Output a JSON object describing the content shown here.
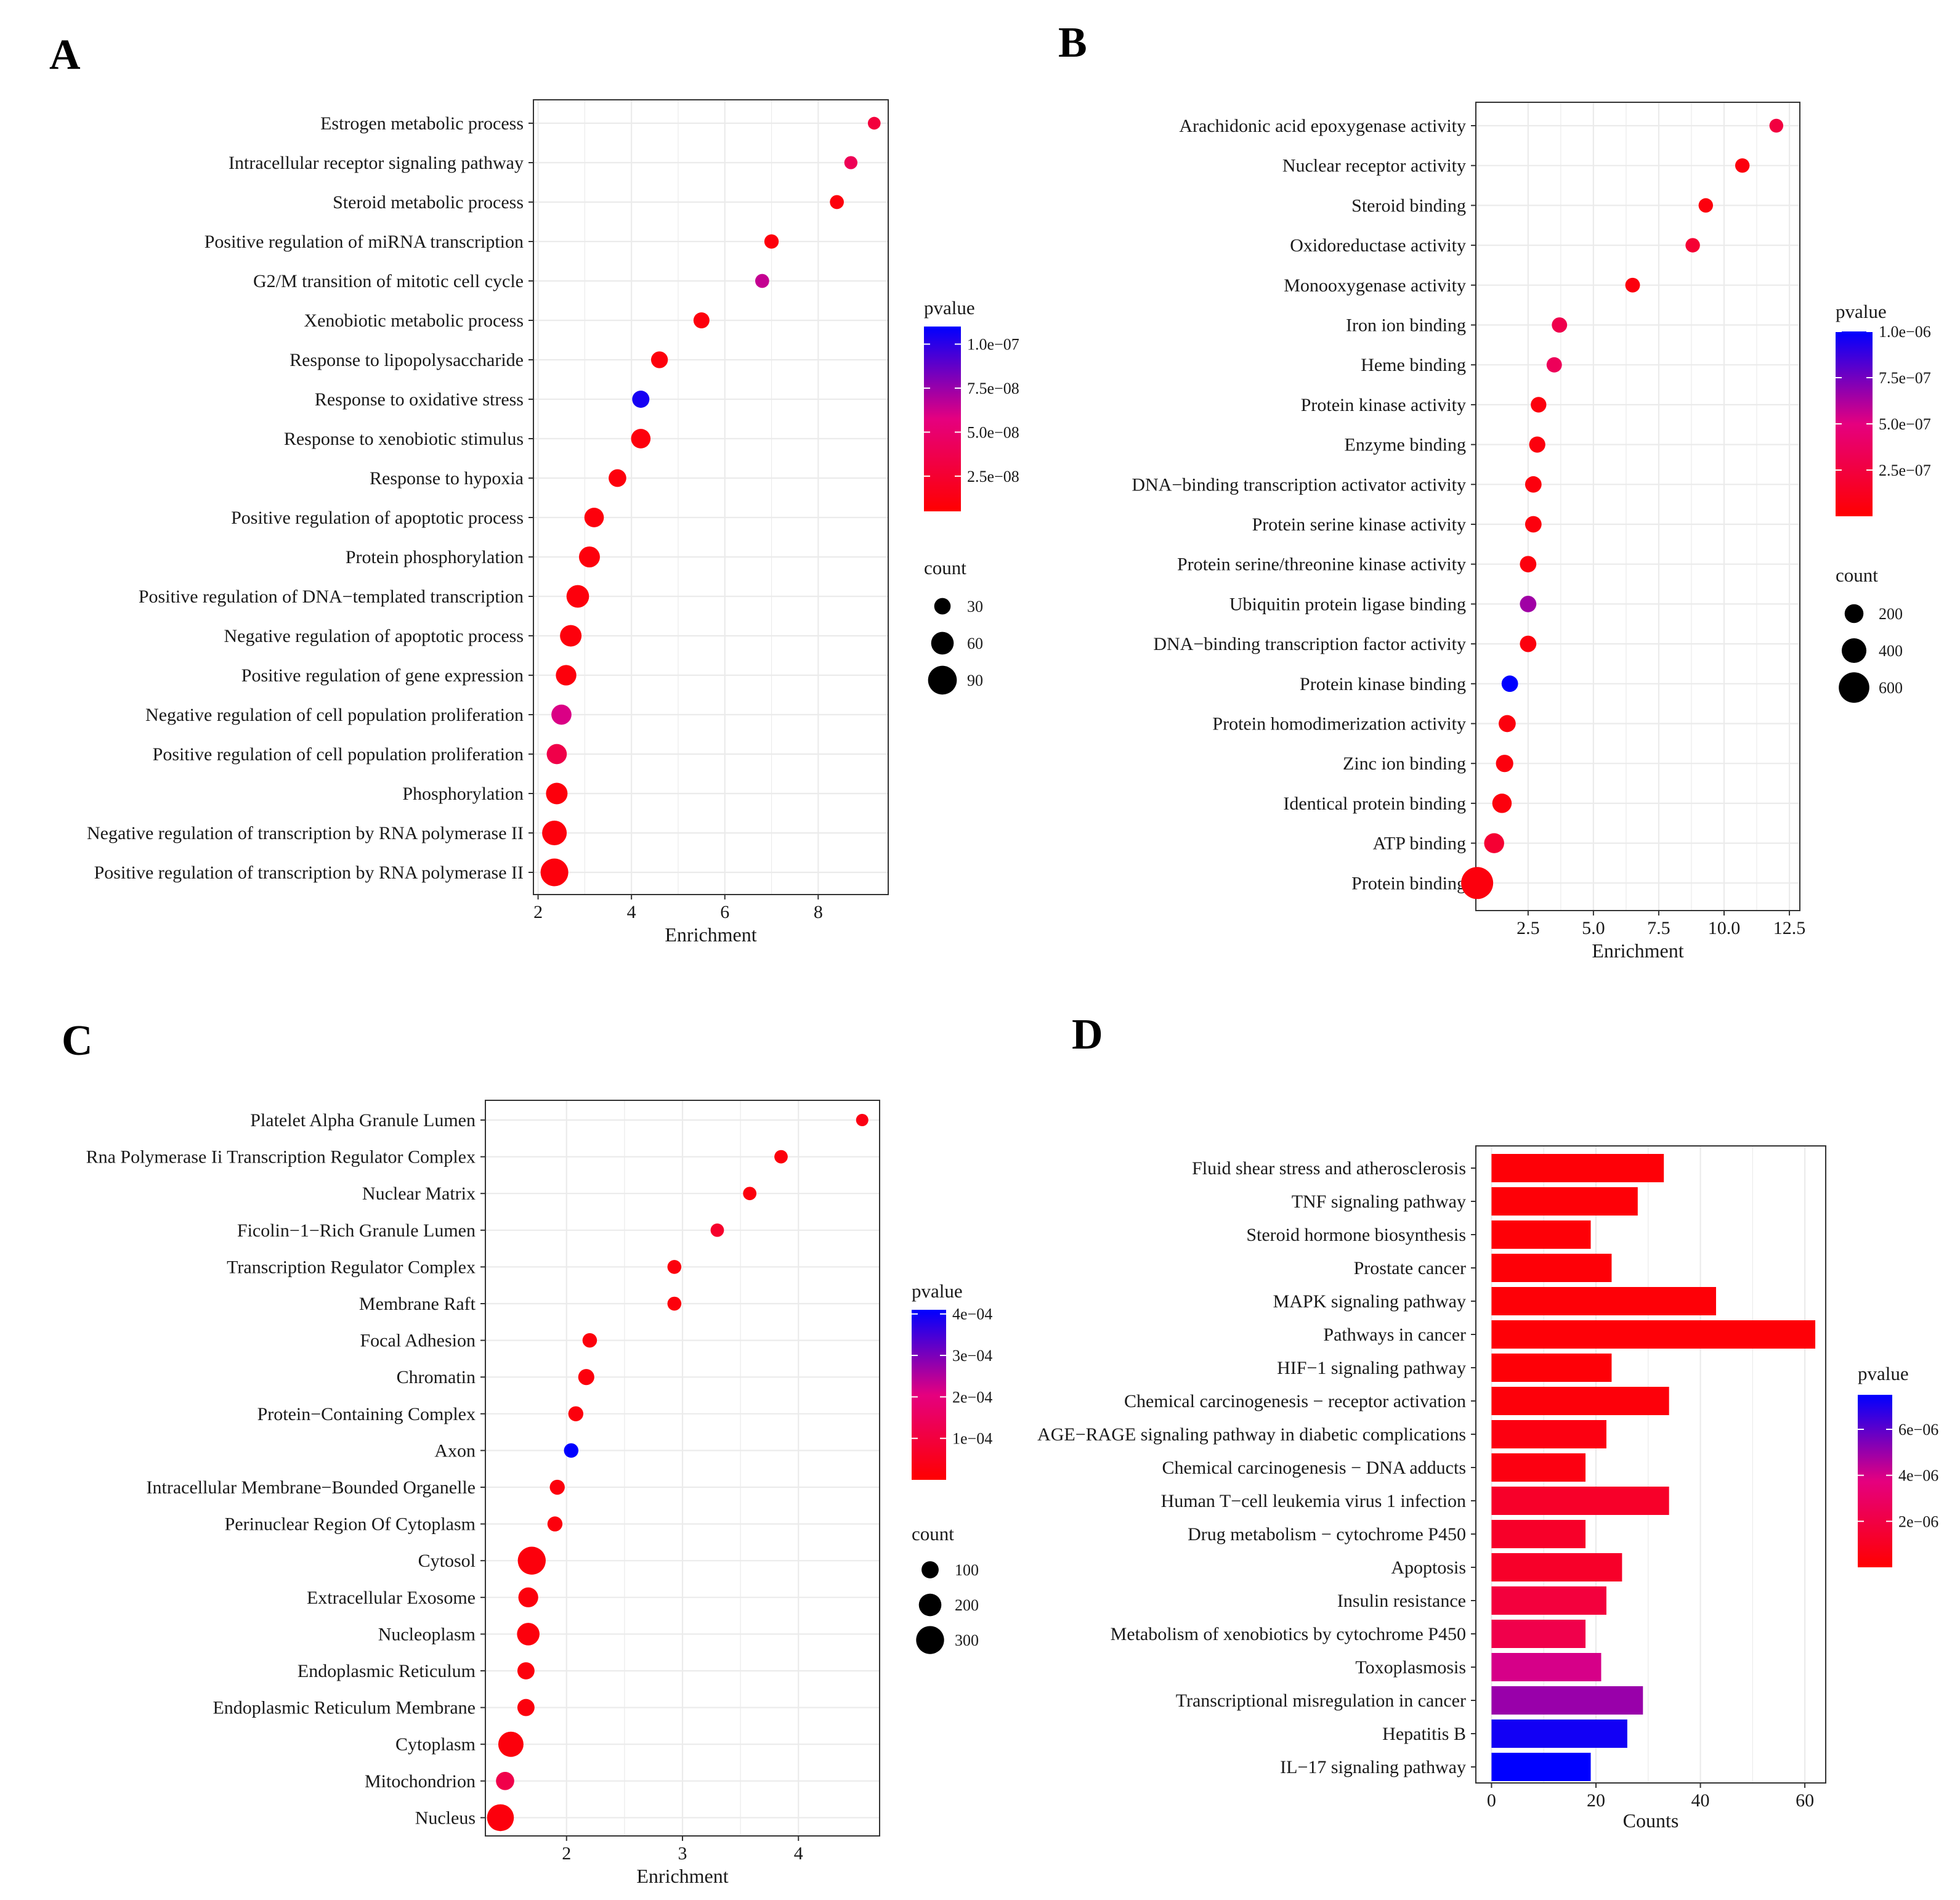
{
  "colors": {
    "low_p": "#ff0000",
    "mid_p": "#e5007f",
    "high_p": "#0000ff",
    "grid": "#ebebeb",
    "axis": "#333333"
  },
  "chart_data": [
    {
      "panel": "A",
      "type": "scatter",
      "xlabel": "Enrichment",
      "xlim": [
        1.9,
        9.5
      ],
      "xticks": [
        2,
        4,
        6,
        8
      ],
      "color_legend": {
        "title": "pvalue",
        "ticks": [
          "1.0e−07",
          "7.5e−08",
          "5.0e−08",
          "2.5e−08"
        ],
        "values": [
          1e-07,
          7.5e-08,
          5e-08,
          2.5e-08
        ],
        "range": [
          5e-09,
          1.1e-07
        ]
      },
      "size_legend": {
        "title": "count",
        "ticks": [
          "30",
          "60",
          "90"
        ],
        "values": [
          30,
          60,
          90
        ]
      },
      "count_range": [
        10,
        100
      ],
      "categories": [
        "Estrogen metabolic process",
        "Intracellular receptor signaling pathway",
        "Steroid metabolic process",
        "Positive regulation of miRNA transcription",
        "G2/M transition of mitotic cell cycle",
        "Xenobiotic metabolic process",
        "Response to lipopolysaccharide",
        "Response to oxidative stress",
        "Response to xenobiotic stimulus",
        "Response to hypoxia",
        "Positive regulation of apoptotic process",
        "Protein phosphorylation",
        "Positive regulation of DNA−templated transcription",
        "Negative regulation of apoptotic process",
        "Positive regulation of gene expression",
        "Negative regulation of cell population proliferation",
        "Positive regulation of cell population proliferation",
        "Phosphorylation",
        "Negative regulation of transcription by RNA polymerase II",
        "Positive regulation of transcription by RNA polymerase II"
      ],
      "x": [
        9.2,
        8.7,
        8.4,
        7.0,
        6.8,
        5.5,
        4.6,
        4.2,
        4.2,
        3.7,
        3.2,
        3.1,
        2.85,
        2.7,
        2.6,
        2.5,
        2.4,
        2.4,
        2.35,
        2.35
      ],
      "pvalue": [
        3e-08,
        4e-08,
        1e-08,
        1e-08,
        6.5e-08,
        1e-08,
        1e-08,
        1.05e-07,
        1e-08,
        1e-08,
        1e-08,
        1e-08,
        1e-08,
        1e-08,
        1e-08,
        6e-08,
        3.5e-08,
        1e-08,
        1e-08,
        1e-08
      ],
      "count": [
        12,
        14,
        18,
        20,
        18,
        28,
        32,
        34,
        45,
        36,
        45,
        52,
        60,
        55,
        50,
        48,
        48,
        55,
        70,
        85
      ]
    },
    {
      "panel": "B",
      "type": "scatter",
      "xlabel": "Enrichment",
      "xlim": [
        0.5,
        12.9
      ],
      "xticks": [
        2.5,
        5.0,
        7.5,
        10.0,
        12.5
      ],
      "xtick_labels": [
        "2.5",
        "5.0",
        "7.5",
        "10.0",
        "12.5"
      ],
      "color_legend": {
        "title": "pvalue",
        "ticks": [
          "1.0e−06",
          "7.5e−07",
          "5.0e−07",
          "2.5e−07"
        ],
        "values": [
          1e-06,
          7.5e-07,
          5e-07,
          2.5e-07
        ],
        "range": [
          0,
          1e-06
        ]
      },
      "size_legend": {
        "title": "count",
        "ticks": [
          "200",
          "400",
          "600"
        ],
        "values": [
          200,
          400,
          600
        ]
      },
      "count_range": [
        20,
        650
      ],
      "categories": [
        "Arachidonic acid epoxygenase activity",
        "Nuclear receptor activity",
        "Steroid binding",
        "Oxidoreductase activity",
        "Monooxygenase activity",
        "Iron ion binding",
        "Heme binding",
        "Protein kinase activity",
        "Enzyme binding",
        "DNA−binding transcription activator activity",
        "Protein serine kinase activity",
        "Protein serine/threonine kinase activity",
        "Ubiquitin protein ligase binding",
        "DNA−binding transcription factor activity",
        "Protein kinase binding",
        "Protein homodimerization activity",
        "Zinc ion binding",
        "Identical protein binding",
        "ATP binding",
        "Protein binding"
      ],
      "x": [
        12.0,
        10.7,
        9.3,
        8.8,
        6.5,
        3.7,
        3.5,
        2.9,
        2.85,
        2.7,
        2.7,
        2.5,
        2.5,
        2.5,
        1.8,
        1.7,
        1.6,
        1.5,
        1.2,
        0.55
      ],
      "pvalue": [
        2.5e-07,
        5e-08,
        5e-08,
        2e-07,
        5e-08,
        3e-07,
        3.5e-07,
        5e-08,
        5e-08,
        5e-08,
        5e-08,
        5e-08,
        6.5e-07,
        5e-08,
        1e-06,
        5e-08,
        5e-08,
        5e-08,
        2e-07,
        5e-08
      ],
      "count": [
        30,
        50,
        50,
        50,
        60,
        80,
        80,
        90,
        110,
        120,
        120,
        120,
        120,
        120,
        120,
        140,
        150,
        220,
        240,
        650
      ]
    },
    {
      "panel": "C",
      "type": "scatter",
      "xlabel": "Enrichment",
      "xlim": [
        1.3,
        4.7
      ],
      "xticks": [
        2,
        3,
        4
      ],
      "color_legend": {
        "title": "pvalue",
        "ticks": [
          "4e−04",
          "3e−04",
          "2e−04",
          "1e−04"
        ],
        "values": [
          0.0004,
          0.0003,
          0.0002,
          0.0001
        ],
        "range": [
          0,
          0.00041
        ]
      },
      "size_legend": {
        "title": "count",
        "ticks": [
          "100",
          "200",
          "300"
        ],
        "values": [
          100,
          200,
          300
        ]
      },
      "count_range": [
        10,
        330
      ],
      "categories": [
        "Platelet Alpha Granule Lumen",
        "Rna Polymerase Ii Transcription Regulator Complex",
        "Nuclear Matrix",
        "Ficolin−1−Rich Granule Lumen",
        "Transcription Regulator Complex",
        "Membrane Raft",
        "Focal Adhesion",
        "Chromatin",
        "Protein−Containing Complex",
        "Axon",
        "Intracellular Membrane−Bounded Organelle",
        "Perinuclear Region Of Cytoplasm",
        "Cytosol",
        "Extracellular Exosome",
        "Nucleoplasm",
        "Endoplasmic Reticulum",
        "Endoplasmic Reticulum Membrane",
        "Cytoplasm",
        "Mitochondrion",
        "Nucleus"
      ],
      "x": [
        4.55,
        3.85,
        3.58,
        3.3,
        2.93,
        2.93,
        2.2,
        2.17,
        2.08,
        2.04,
        1.92,
        1.9,
        1.7,
        1.67,
        1.67,
        1.65,
        1.65,
        1.52,
        1.47,
        1.43
      ],
      "pvalue": [
        3e-05,
        2e-05,
        2e-05,
        7e-05,
        2e-05,
        2e-05,
        2e-05,
        2e-05,
        2e-05,
        0.00041,
        2e-05,
        2e-05,
        2e-05,
        2e-05,
        2e-05,
        2e-05,
        2e-05,
        2e-05,
        0.00012,
        2e-05
      ],
      "count": [
        10,
        30,
        30,
        30,
        40,
        40,
        50,
        80,
        60,
        50,
        60,
        60,
        300,
        150,
        200,
        100,
        100,
        250,
        120,
        280
      ]
    },
    {
      "panel": "D",
      "type": "bar",
      "orientation": "horizontal",
      "xlabel": "Counts",
      "xlim": [
        -3,
        64
      ],
      "xticks": [
        0,
        20,
        40,
        60
      ],
      "color_legend": {
        "title": "pvalue",
        "ticks": [
          "6e−06",
          "4e−06",
          "2e−06"
        ],
        "values": [
          6e-06,
          4e-06,
          2e-06
        ],
        "range": [
          0,
          7.5e-06
        ]
      },
      "categories": [
        "Fluid shear stress and atherosclerosis",
        "TNF signaling pathway",
        "Steroid hormone biosynthesis",
        "Prostate cancer",
        "MAPK signaling pathway",
        "Pathways in cancer",
        "HIF−1 signaling pathway",
        "Chemical carcinogenesis − receptor activation",
        "AGE−RAGE signaling pathway in diabetic complications",
        "Chemical carcinogenesis − DNA adducts",
        "Human T−cell leukemia virus 1 infection",
        "Drug metabolism − cytochrome P450",
        "Apoptosis",
        "Insulin resistance",
        "Metabolism of xenobiotics by cytochrome P450",
        "Toxoplasmosis",
        "Transcriptional misregulation in cancer",
        "Hepatitis B",
        "IL−17 signaling pathway"
      ],
      "values": [
        33,
        28,
        19,
        23,
        43,
        62,
        23,
        34,
        22,
        18,
        34,
        18,
        25,
        22,
        18,
        21,
        29,
        26,
        19
      ],
      "pvalue": [
        2e-07,
        2e-07,
        2e-07,
        2e-07,
        2e-07,
        2e-07,
        2e-07,
        3e-07,
        5e-07,
        5e-07,
        1.2e-06,
        1.2e-06,
        1.2e-06,
        1.8e-06,
        2.2e-06,
        4e-06,
        5e-06,
        7.2e-06,
        7.5e-06
      ]
    }
  ]
}
